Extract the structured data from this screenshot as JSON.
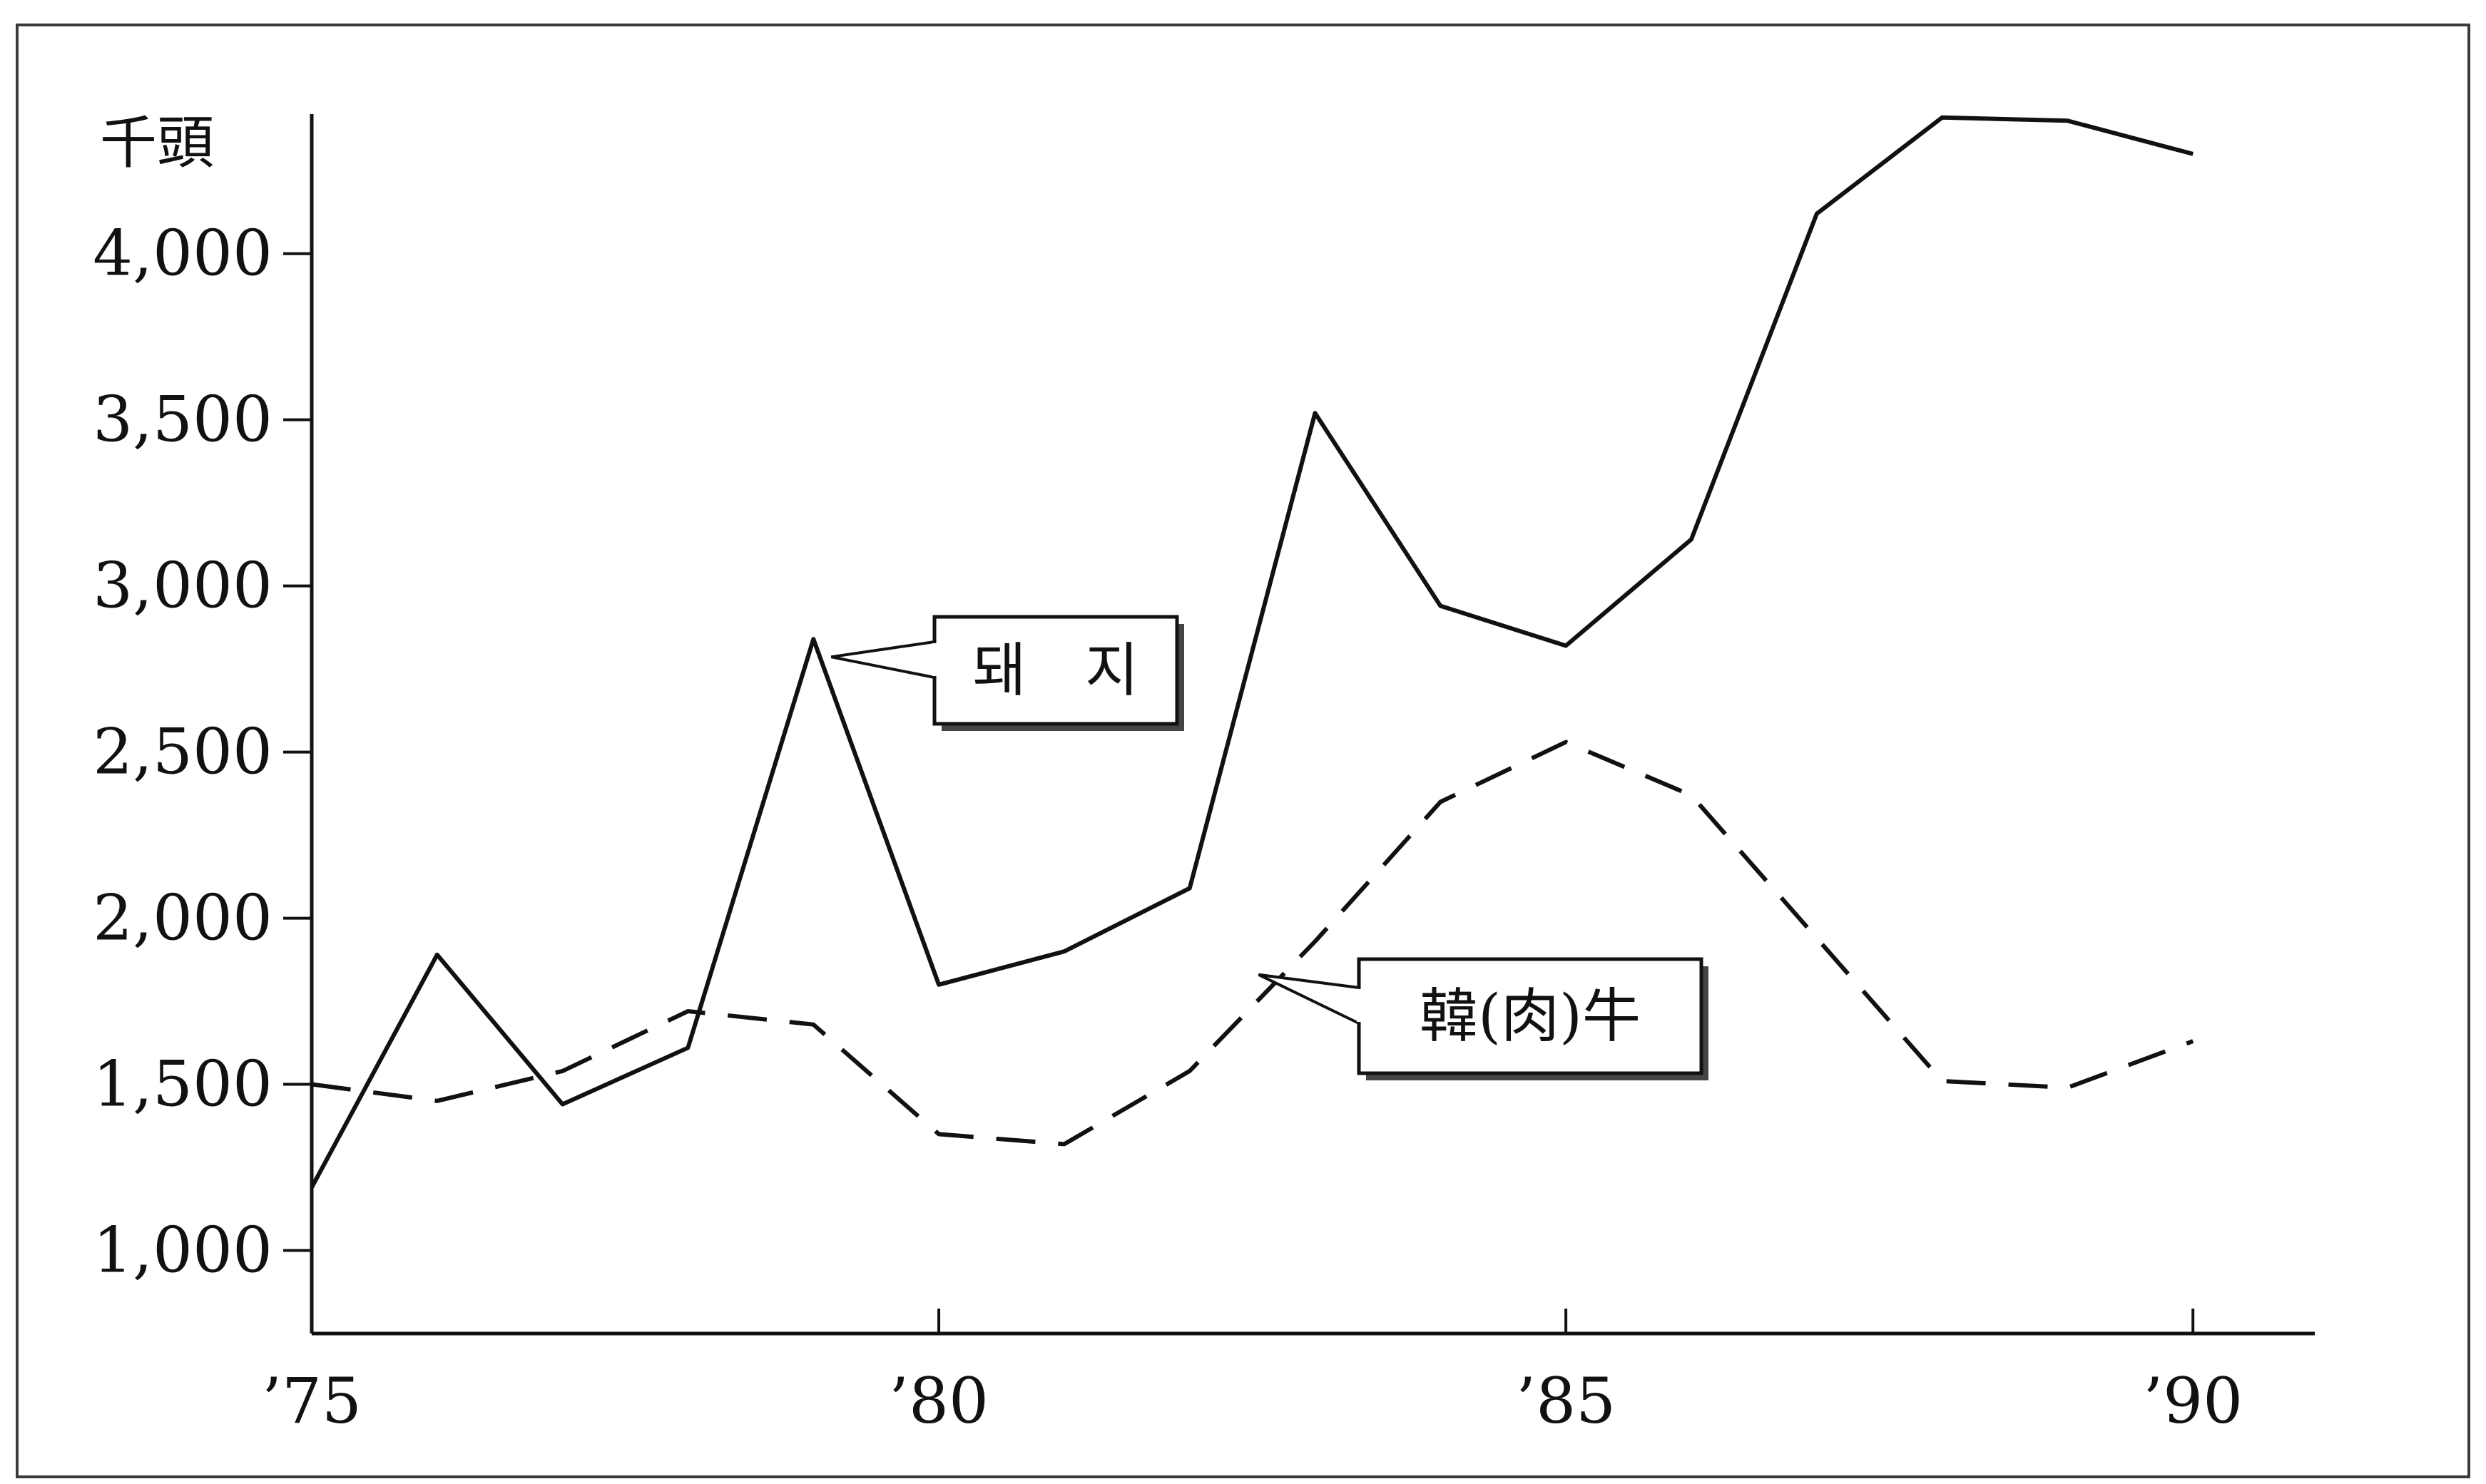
{
  "chart_data": {
    "type": "line",
    "unit_label": "千頭",
    "x": [
      1975,
      1976,
      1977,
      1978,
      1979,
      1980,
      1981,
      1982,
      1983,
      1984,
      1985,
      1986,
      1987,
      1988,
      1989,
      1990
    ],
    "x_tick_values": [
      1975,
      1980,
      1985,
      1990
    ],
    "x_tick_labels": [
      "’75",
      "’80",
      "’85",
      "’90"
    ],
    "xlim": [
      1975,
      1991
    ],
    "y_ticks": [
      1000,
      1500,
      2000,
      2500,
      3000,
      3500,
      4000
    ],
    "y_tick_labels": [
      "1,000",
      "1,500",
      "2,000",
      "2,500",
      "3,000",
      "3,500",
      "4,000"
    ],
    "ylim": [
      750,
      4420
    ],
    "grid": false,
    "legend": "callouts",
    "series": [
      {
        "name": "돼　지",
        "style": "solid",
        "color": "#111111",
        "values": [
          1190,
          1890,
          1440,
          1610,
          2840,
          1800,
          1900,
          2090,
          3520,
          2940,
          2820,
          3140,
          4120,
          4410,
          4400,
          4300
        ]
      },
      {
        "name": "韓(肉)牛",
        "style": "dashed",
        "color": "#111111",
        "values": [
          1500,
          1450,
          1540,
          1720,
          1680,
          1350,
          1320,
          1540,
          1930,
          2350,
          2530,
          2370,
          1940,
          1510,
          1490,
          1630
        ]
      }
    ]
  }
}
